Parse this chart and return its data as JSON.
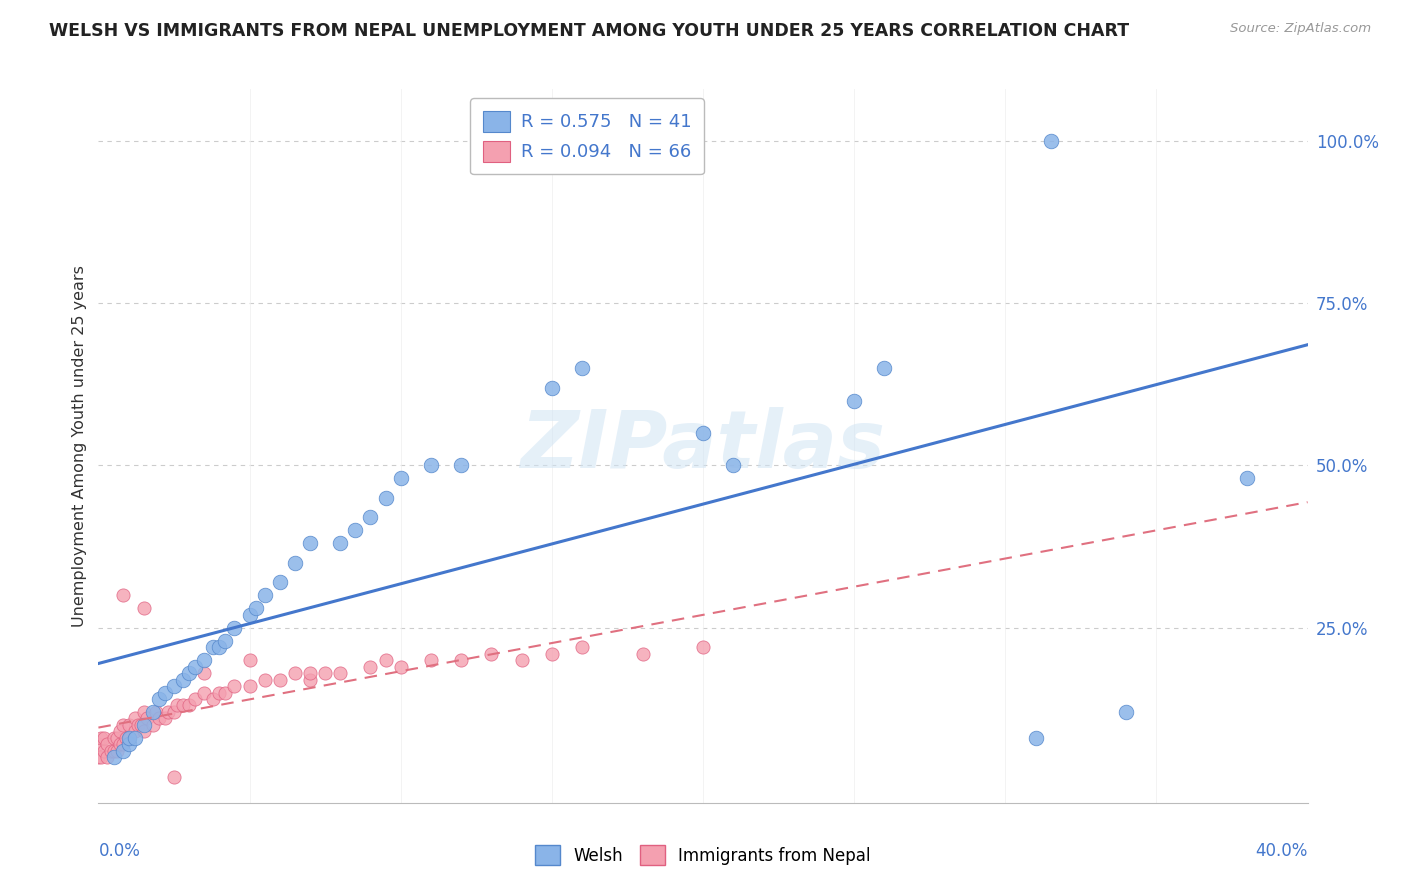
{
  "title": "WELSH VS IMMIGRANTS FROM NEPAL UNEMPLOYMENT AMONG YOUTH UNDER 25 YEARS CORRELATION CHART",
  "source": "Source: ZipAtlas.com",
  "ylabel": "Unemployment Among Youth under 25 years",
  "watermark": "ZIPatlas",
  "welsh_R": "0.575",
  "welsh_N": "41",
  "nepal_R": "0.094",
  "nepal_N": "66",
  "welsh_color": "#8ab4e8",
  "welsh_edge_color": "#5588cc",
  "nepal_color": "#f4a0b0",
  "nepal_edge_color": "#e06080",
  "welsh_line_color": "#4477cc",
  "nepal_line_color": "#e07080",
  "xlim": [
    0.0,
    0.4
  ],
  "ylim": [
    -0.02,
    1.08
  ],
  "ytick_values": [
    0.25,
    0.5,
    0.75,
    1.0
  ],
  "ytick_labels": [
    "25.0%",
    "50.0%",
    "75.0%",
    "100.0%"
  ],
  "background_color": "#ffffff",
  "grid_color": "#cccccc",
  "welsh_scatter_x": [
    0.005,
    0.008,
    0.01,
    0.01,
    0.012,
    0.015,
    0.018,
    0.02,
    0.022,
    0.025,
    0.028,
    0.03,
    0.032,
    0.035,
    0.038,
    0.04,
    0.042,
    0.045,
    0.05,
    0.052,
    0.055,
    0.06,
    0.065,
    0.07,
    0.08,
    0.085,
    0.09,
    0.095,
    0.1,
    0.11,
    0.12,
    0.15,
    0.16,
    0.2,
    0.21,
    0.25,
    0.26,
    0.31,
    0.34,
    0.38,
    0.315
  ],
  "welsh_scatter_y": [
    0.05,
    0.06,
    0.07,
    0.08,
    0.08,
    0.1,
    0.12,
    0.14,
    0.15,
    0.16,
    0.17,
    0.18,
    0.19,
    0.2,
    0.22,
    0.22,
    0.23,
    0.25,
    0.27,
    0.28,
    0.3,
    0.32,
    0.35,
    0.38,
    0.38,
    0.4,
    0.42,
    0.45,
    0.48,
    0.5,
    0.5,
    0.62,
    0.65,
    0.55,
    0.5,
    0.6,
    0.65,
    0.08,
    0.12,
    0.48,
    1.0
  ],
  "nepal_scatter_x": [
    0.0,
    0.0,
    0.001,
    0.001,
    0.002,
    0.002,
    0.003,
    0.003,
    0.004,
    0.005,
    0.005,
    0.006,
    0.006,
    0.007,
    0.007,
    0.008,
    0.008,
    0.009,
    0.01,
    0.01,
    0.012,
    0.012,
    0.013,
    0.014,
    0.015,
    0.015,
    0.016,
    0.018,
    0.019,
    0.02,
    0.022,
    0.023,
    0.025,
    0.026,
    0.028,
    0.03,
    0.032,
    0.035,
    0.038,
    0.04,
    0.042,
    0.045,
    0.05,
    0.055,
    0.06,
    0.065,
    0.07,
    0.075,
    0.08,
    0.09,
    0.095,
    0.1,
    0.11,
    0.12,
    0.13,
    0.14,
    0.15,
    0.16,
    0.18,
    0.2,
    0.008,
    0.015,
    0.025,
    0.035,
    0.05,
    0.07
  ],
  "nepal_scatter_y": [
    0.05,
    0.07,
    0.05,
    0.08,
    0.06,
    0.08,
    0.05,
    0.07,
    0.06,
    0.06,
    0.08,
    0.06,
    0.08,
    0.07,
    0.09,
    0.07,
    0.1,
    0.08,
    0.08,
    0.1,
    0.09,
    0.11,
    0.1,
    0.1,
    0.09,
    0.12,
    0.11,
    0.1,
    0.12,
    0.11,
    0.11,
    0.12,
    0.12,
    0.13,
    0.13,
    0.13,
    0.14,
    0.15,
    0.14,
    0.15,
    0.15,
    0.16,
    0.16,
    0.17,
    0.17,
    0.18,
    0.17,
    0.18,
    0.18,
    0.19,
    0.2,
    0.19,
    0.2,
    0.2,
    0.21,
    0.2,
    0.21,
    0.22,
    0.21,
    0.22,
    0.3,
    0.28,
    0.02,
    0.18,
    0.2,
    0.18
  ]
}
